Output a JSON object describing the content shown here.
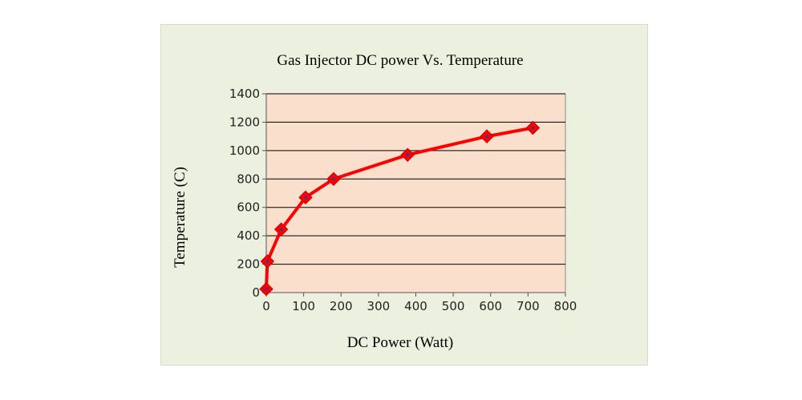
{
  "chart_data": {
    "type": "line",
    "title": "Gas Injector DC power Vs. Temperature",
    "xlabel": "DC Power (Watt)",
    "ylabel": "Temperature (C)",
    "xlim": [
      0,
      800
    ],
    "ylim": [
      0,
      1400
    ],
    "x_ticks": [
      "0",
      "100",
      "200",
      "300",
      "400",
      "500",
      "600",
      "700",
      "800"
    ],
    "y_ticks": [
      "0",
      "200",
      "400",
      "600",
      "800",
      "1000",
      "1200",
      "1400"
    ],
    "grid": "horizontal",
    "series": [
      {
        "x": [
          0,
          3,
          40,
          105,
          180,
          378,
          590,
          713
        ],
        "y": [
          25,
          220,
          445,
          670,
          800,
          970,
          1100,
          1160
        ]
      }
    ]
  },
  "colors": {
    "frame_background": "#ebf1de",
    "plot_background": "#fadfcd",
    "line": "#ff0000",
    "marker_fill": "#ff0000",
    "marker_center": "#1f3fae",
    "grid": "#000000"
  }
}
